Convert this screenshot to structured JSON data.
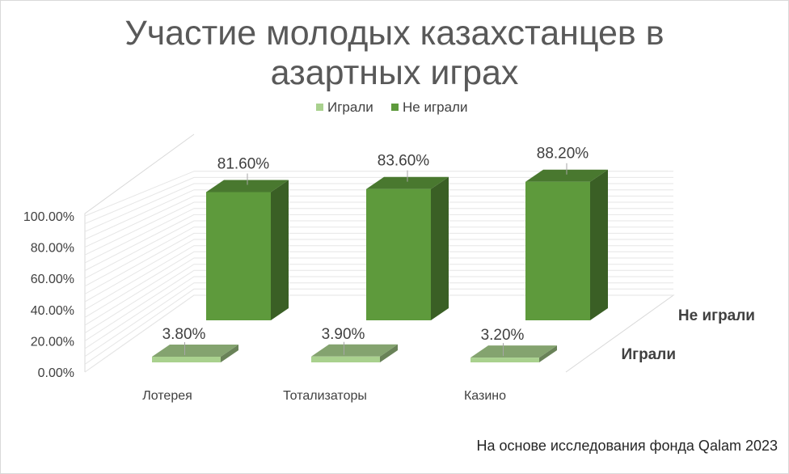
{
  "chart_data": {
    "type": "bar",
    "subtype": "3d-clustered-column",
    "title": "Участие молодых казахстанцев в азартных играх",
    "title_lines": [
      "Участие молодых казахстанцев в",
      "азартных играх"
    ],
    "categories": [
      "Лотерея",
      "Тотализаторы",
      "Казино"
    ],
    "series": [
      {
        "name": "Играли",
        "values": [
          3.8,
          3.9,
          3.2
        ],
        "labels": [
          "3.80%",
          "3.90%",
          "3.20%"
        ],
        "color": "#a9d18e"
      },
      {
        "name": "Не играли",
        "values": [
          81.6,
          83.6,
          88.2
        ],
        "labels": [
          "81.60%",
          "83.60%",
          "88.20%"
        ],
        "color": "#5e9a3c"
      }
    ],
    "series_axis_labels": [
      "Не играли",
      "Играли"
    ],
    "y_ticks": [
      "0.00%",
      "20.00%",
      "40.00%",
      "60.00%",
      "80.00%",
      "100.00%"
    ],
    "ylim": [
      0,
      100
    ],
    "y_unit": "%",
    "legend_position": "top",
    "grid": true,
    "source": "На основе исследования фонда Qalam 2023"
  }
}
